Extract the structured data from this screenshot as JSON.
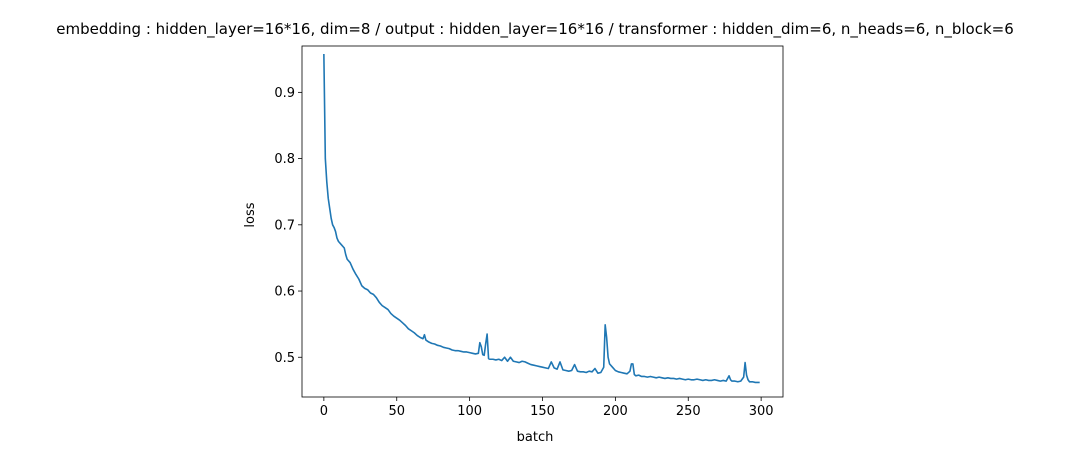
{
  "chart_data": {
    "type": "line",
    "title": "embedding : hidden_layer=16*16, dim=8 / output : hidden_layer=16*16 / transformer : hidden_dim=6, n_heads=6, n_block=6",
    "xlabel": "batch",
    "ylabel": "loss",
    "xlim": [
      -15,
      315
    ],
    "ylim": [
      0.44,
      0.97
    ],
    "xticks": [
      0,
      50,
      100,
      150,
      200,
      250,
      300
    ],
    "yticks": [
      0.5,
      0.6,
      0.7,
      0.8,
      0.9
    ],
    "ytick_labels": [
      "0.5",
      "0.6",
      "0.7",
      "0.8",
      "0.9"
    ],
    "grid": false,
    "series": [
      {
        "color": "#1f77b4",
        "points": [
          [
            0,
            0.958
          ],
          [
            1,
            0.8
          ],
          [
            2,
            0.765
          ],
          [
            3,
            0.74
          ],
          [
            4,
            0.725
          ],
          [
            5,
            0.71
          ],
          [
            6,
            0.7
          ],
          [
            7,
            0.696
          ],
          [
            8,
            0.69
          ],
          [
            9,
            0.68
          ],
          [
            10,
            0.675
          ],
          [
            12,
            0.67
          ],
          [
            14,
            0.665
          ],
          [
            15,
            0.655
          ],
          [
            16,
            0.648
          ],
          [
            18,
            0.643
          ],
          [
            20,
            0.633
          ],
          [
            22,
            0.625
          ],
          [
            24,
            0.618
          ],
          [
            26,
            0.608
          ],
          [
            28,
            0.604
          ],
          [
            30,
            0.602
          ],
          [
            32,
            0.597
          ],
          [
            34,
            0.595
          ],
          [
            36,
            0.59
          ],
          [
            38,
            0.583
          ],
          [
            40,
            0.578
          ],
          [
            42,
            0.575
          ],
          [
            44,
            0.572
          ],
          [
            46,
            0.566
          ],
          [
            48,
            0.562
          ],
          [
            50,
            0.559
          ],
          [
            52,
            0.556
          ],
          [
            54,
            0.552
          ],
          [
            56,
            0.548
          ],
          [
            58,
            0.543
          ],
          [
            60,
            0.54
          ],
          [
            62,
            0.537
          ],
          [
            64,
            0.533
          ],
          [
            66,
            0.53
          ],
          [
            68,
            0.528
          ],
          [
            69,
            0.534
          ],
          [
            70,
            0.526
          ],
          [
            72,
            0.523
          ],
          [
            74,
            0.521
          ],
          [
            76,
            0.52
          ],
          [
            78,
            0.518
          ],
          [
            80,
            0.517
          ],
          [
            82,
            0.515
          ],
          [
            84,
            0.514
          ],
          [
            86,
            0.513
          ],
          [
            88,
            0.511
          ],
          [
            90,
            0.51
          ],
          [
            92,
            0.51
          ],
          [
            94,
            0.509
          ],
          [
            96,
            0.508
          ],
          [
            98,
            0.508
          ],
          [
            100,
            0.507
          ],
          [
            102,
            0.506
          ],
          [
            104,
            0.505
          ],
          [
            106,
            0.506
          ],
          [
            107,
            0.522
          ],
          [
            108,
            0.516
          ],
          [
            109,
            0.504
          ],
          [
            110,
            0.503
          ],
          [
            111,
            0.52
          ],
          [
            112,
            0.535
          ],
          [
            113,
            0.498
          ],
          [
            114,
            0.497
          ],
          [
            116,
            0.497
          ],
          [
            118,
            0.496
          ],
          [
            120,
            0.497
          ],
          [
            122,
            0.495
          ],
          [
            124,
            0.5
          ],
          [
            126,
            0.494
          ],
          [
            128,
            0.5
          ],
          [
            130,
            0.494
          ],
          [
            132,
            0.493
          ],
          [
            134,
            0.492
          ],
          [
            136,
            0.494
          ],
          [
            138,
            0.493
          ],
          [
            140,
            0.491
          ],
          [
            142,
            0.489
          ],
          [
            144,
            0.488
          ],
          [
            146,
            0.487
          ],
          [
            148,
            0.486
          ],
          [
            150,
            0.485
          ],
          [
            152,
            0.484
          ],
          [
            154,
            0.483
          ],
          [
            156,
            0.493
          ],
          [
            158,
            0.484
          ],
          [
            160,
            0.482
          ],
          [
            162,
            0.493
          ],
          [
            164,
            0.481
          ],
          [
            166,
            0.48
          ],
          [
            168,
            0.479
          ],
          [
            170,
            0.48
          ],
          [
            172,
            0.489
          ],
          [
            174,
            0.479
          ],
          [
            176,
            0.478
          ],
          [
            178,
            0.478
          ],
          [
            180,
            0.477
          ],
          [
            182,
            0.479
          ],
          [
            184,
            0.478
          ],
          [
            186,
            0.483
          ],
          [
            188,
            0.476
          ],
          [
            190,
            0.477
          ],
          [
            192,
            0.485
          ],
          [
            193,
            0.549
          ],
          [
            194,
            0.53
          ],
          [
            195,
            0.5
          ],
          [
            196,
            0.49
          ],
          [
            198,
            0.485
          ],
          [
            200,
            0.48
          ],
          [
            202,
            0.478
          ],
          [
            204,
            0.477
          ],
          [
            206,
            0.476
          ],
          [
            208,
            0.475
          ],
          [
            210,
            0.479
          ],
          [
            211,
            0.49
          ],
          [
            212,
            0.49
          ],
          [
            213,
            0.474
          ],
          [
            214,
            0.472
          ],
          [
            216,
            0.473
          ],
          [
            218,
            0.471
          ],
          [
            220,
            0.471
          ],
          [
            222,
            0.47
          ],
          [
            224,
            0.471
          ],
          [
            226,
            0.47
          ],
          [
            228,
            0.469
          ],
          [
            230,
            0.47
          ],
          [
            232,
            0.469
          ],
          [
            234,
            0.468
          ],
          [
            236,
            0.469
          ],
          [
            238,
            0.468
          ],
          [
            240,
            0.468
          ],
          [
            242,
            0.467
          ],
          [
            244,
            0.468
          ],
          [
            246,
            0.467
          ],
          [
            248,
            0.466
          ],
          [
            250,
            0.467
          ],
          [
            252,
            0.466
          ],
          [
            254,
            0.466
          ],
          [
            256,
            0.467
          ],
          [
            258,
            0.466
          ],
          [
            260,
            0.465
          ],
          [
            262,
            0.466
          ],
          [
            264,
            0.465
          ],
          [
            266,
            0.465
          ],
          [
            268,
            0.466
          ],
          [
            270,
            0.465
          ],
          [
            272,
            0.464
          ],
          [
            274,
            0.465
          ],
          [
            276,
            0.464
          ],
          [
            278,
            0.472
          ],
          [
            279,
            0.466
          ],
          [
            280,
            0.464
          ],
          [
            282,
            0.464
          ],
          [
            284,
            0.463
          ],
          [
            286,
            0.464
          ],
          [
            288,
            0.47
          ],
          [
            289,
            0.492
          ],
          [
            290,
            0.473
          ],
          [
            291,
            0.466
          ],
          [
            292,
            0.463
          ],
          [
            294,
            0.463
          ],
          [
            296,
            0.462
          ],
          [
            298,
            0.462
          ],
          [
            299,
            0.462
          ]
        ]
      }
    ]
  }
}
